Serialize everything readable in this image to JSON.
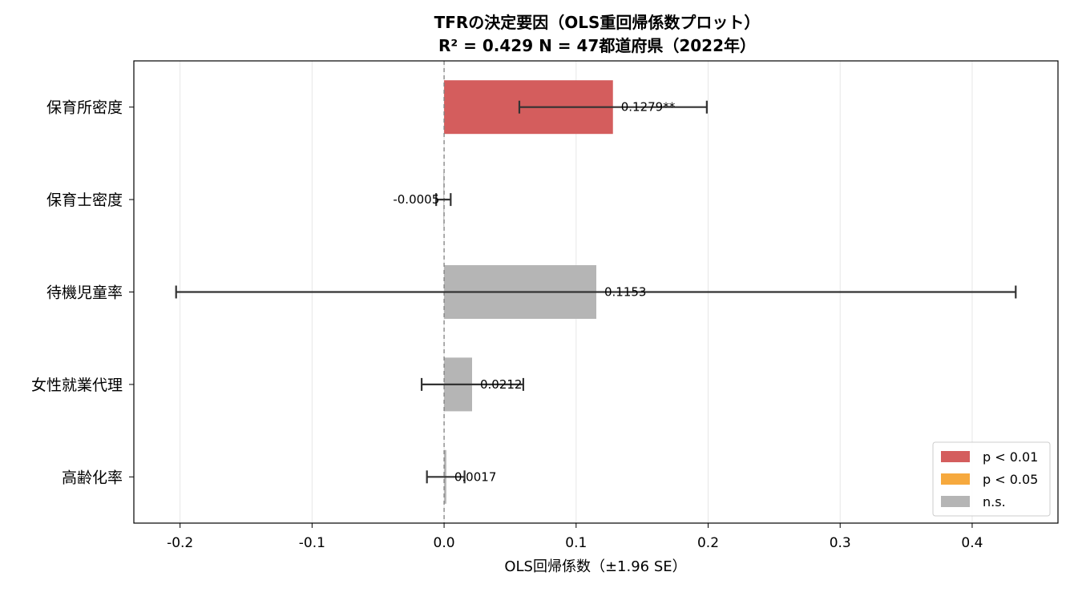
{
  "chart_data": {
    "type": "bar",
    "orientation": "horizontal",
    "title": "TFRの決定要因（OLS重回帰係数プロット）",
    "subtitle": "R² = 0.429  N = 47都道府県（2022年）",
    "xlabel": "OLS回帰係数（±1.96 SE）",
    "ylabel": "",
    "xlim": [
      -0.235,
      0.465
    ],
    "xticks": [
      -0.2,
      -0.1,
      0.0,
      0.1,
      0.2,
      0.3,
      0.4
    ],
    "xtick_labels": [
      "-0.2",
      "-0.1",
      "0.0",
      "0.1",
      "0.2",
      "0.3",
      "0.4"
    ],
    "grid": "vertical",
    "categories": [
      "保育所密度",
      "保育士密度",
      "待機児童率",
      "女性就業代理",
      "高齢化率"
    ],
    "values": [
      0.1279,
      -0.0005,
      0.1153,
      0.0212,
      0.0017
    ],
    "ci_low": [
      0.057,
      -0.006,
      -0.203,
      -0.017,
      -0.013
    ],
    "ci_high": [
      0.199,
      0.005,
      0.433,
      0.06,
      0.0155
    ],
    "significance": [
      "p<0.01",
      "n.s.",
      "n.s.",
      "n.s.",
      "n.s."
    ],
    "data_labels": [
      "0.1279**",
      "-0.0005",
      "0.1153",
      "0.0212",
      "0.0017"
    ],
    "legend": [
      {
        "label": "p < 0.01",
        "color": "#d45d5d"
      },
      {
        "label": "p < 0.05",
        "color": "#f6a93e"
      },
      {
        "label": "n.s.",
        "color": "#b5b5b5"
      }
    ],
    "legend_position": "bottom-right",
    "colors": {
      "p<0.01": "#d45d5d",
      "p<0.05": "#f6a93e",
      "n.s.": "#b5b5b5",
      "errorbar": "#333333",
      "zero_line": "#808080"
    }
  }
}
